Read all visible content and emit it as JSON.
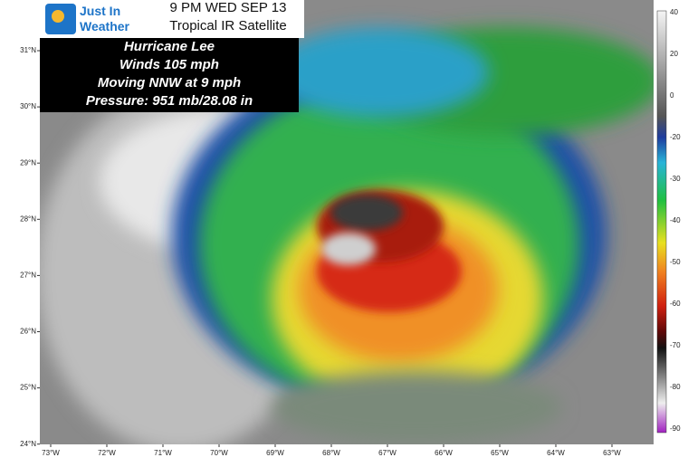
{
  "header": {
    "logo": [
      "Just In",
      "Weather"
    ],
    "time": "9 PM WED SEP 13",
    "product": "Tropical IR Satellite"
  },
  "storm": {
    "lines": [
      "Hurricane Lee",
      "Winds 105 mph",
      "Moving NNW at 9 mph",
      "Pressure: 951 mb/28.08 in"
    ]
  },
  "latitude_labels": [
    "31°N",
    "30°N",
    "29°N",
    "28°N",
    "27°N",
    "26°N",
    "25°N",
    "24°N"
  ],
  "longitude_labels": [
    "73°W",
    "72°W",
    "71°W",
    "70°W",
    "69°W",
    "68°W",
    "67°W",
    "66°W",
    "65°W",
    "64°W",
    "63°W"
  ],
  "colorbar_ticks": [
    40,
    20,
    0,
    -20,
    -30,
    -40,
    -50,
    -60,
    -70,
    -80,
    -90
  ]
}
